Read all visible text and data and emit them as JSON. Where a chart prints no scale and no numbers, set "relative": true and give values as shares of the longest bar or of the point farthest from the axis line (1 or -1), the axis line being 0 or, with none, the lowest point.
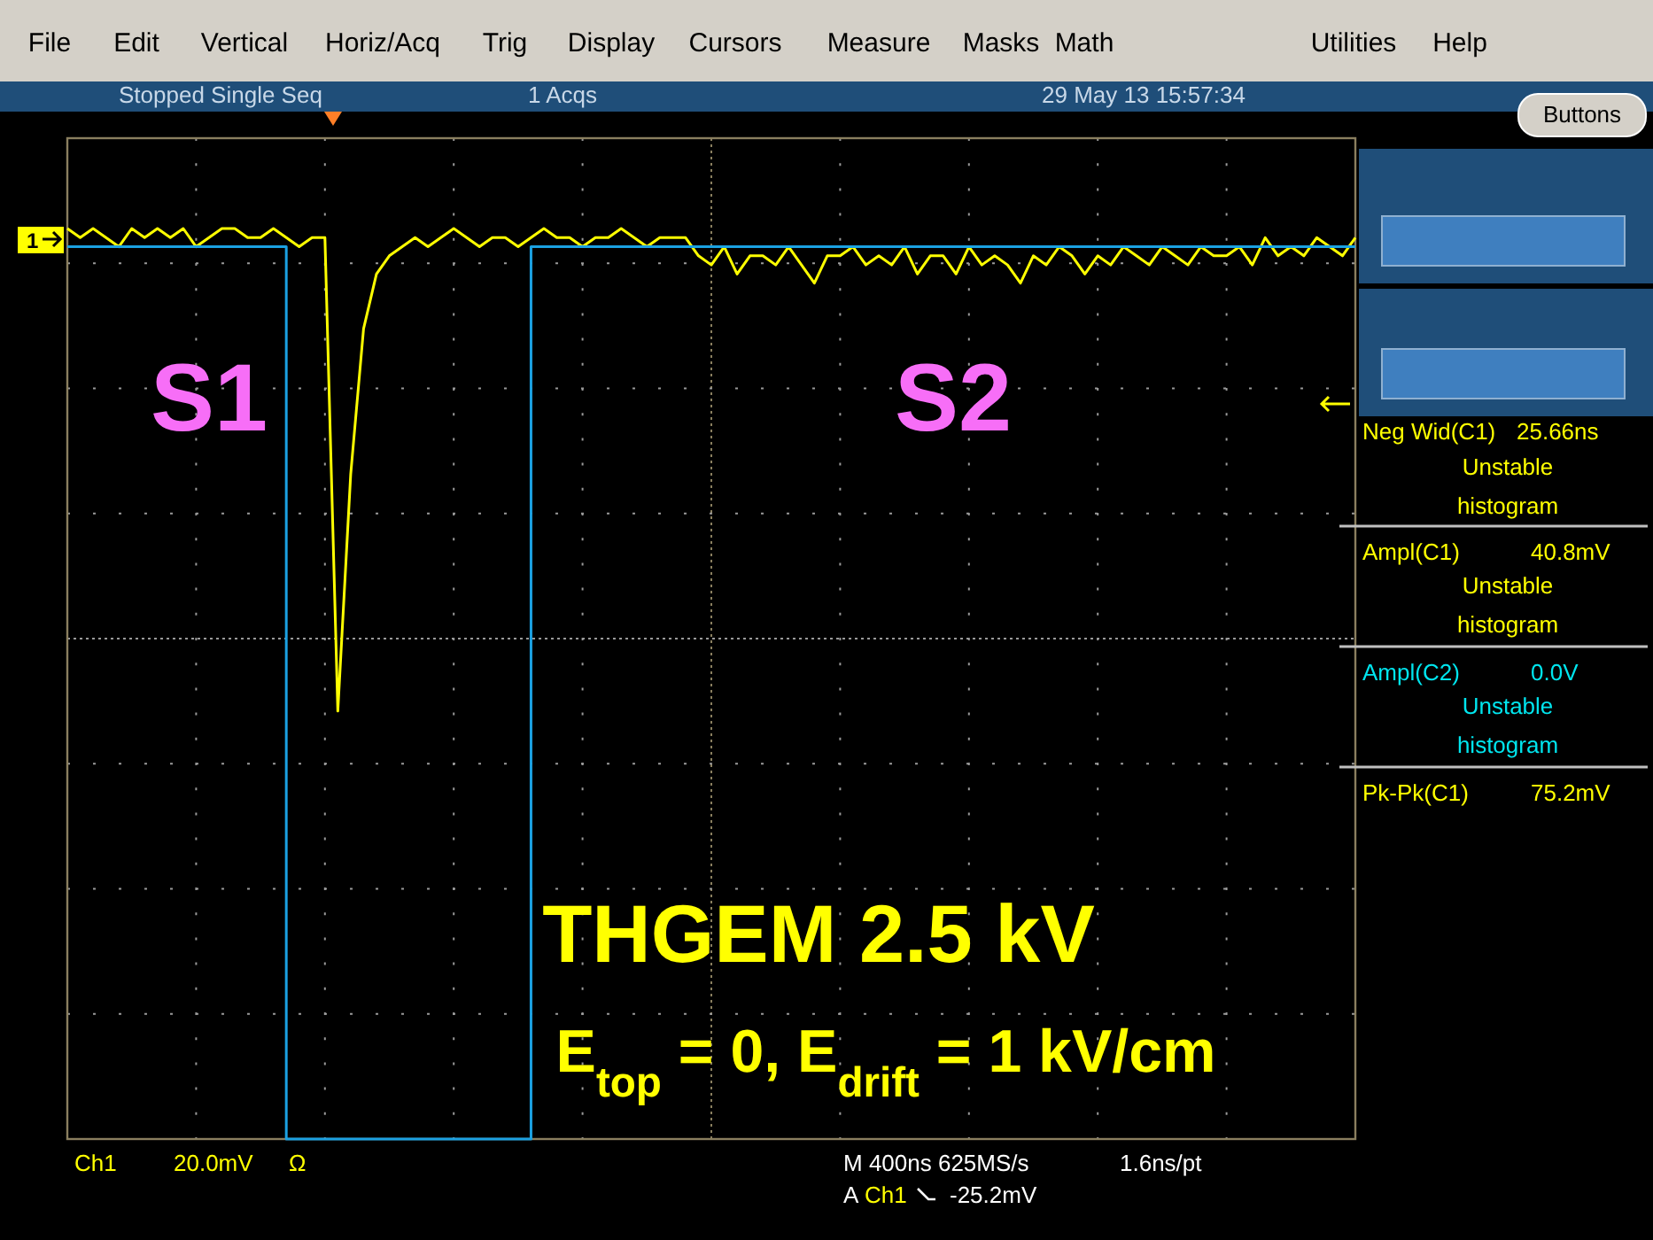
{
  "chart_data": {
    "type": "line",
    "relative": true,
    "grid": true,
    "marker": "none",
    "line_style": "solid",
    "title": "THGEM 2.5 kV",
    "subtitle": "E$_{top}$ = 0, E$_{drift}$ = 1 kV/cm",
    "categories": [
      null,
      null,
      null,
      null,
      null,
      null,
      null,
      null,
      null,
      null,
      null,
      null,
      null,
      null,
      null,
      null,
      null,
      null,
      null,
      null,
      null,
      null,
      null,
      null,
      null,
      null,
      null,
      null,
      null,
      null,
      null,
      null,
      null,
      null,
      null,
      null,
      null,
      null,
      null,
      null,
      null,
      null,
      null,
      null,
      null,
      null,
      null,
      null,
      null,
      null,
      null,
      null,
      null,
      null,
      null,
      null,
      null,
      null,
      null,
      null,
      null,
      null,
      null,
      null,
      null,
      null,
      null,
      null,
      null,
      null,
      null,
      null,
      null,
      null,
      null,
      null,
      null,
      null,
      null,
      null,
      null,
      null,
      null,
      null,
      null,
      null,
      null,
      null,
      null,
      null,
      null,
      null,
      null,
      null,
      null,
      null,
      null,
      null,
      null,
      null,
      null
    ],
    "series": [
      {
        "color": "#ffff00",
        "values": [
          1,
          0.99,
          1,
          0.99,
          0.98,
          1,
          0.99,
          1,
          0.99,
          1,
          0.98,
          0.99,
          1,
          1,
          0.99,
          0.99,
          1,
          0.99,
          0.98,
          0.99,
          0.99,
          0.47,
          0.73,
          0.89,
          0.95,
          0.97,
          0.98,
          0.99,
          0.98,
          0.99,
          1,
          0.99,
          0.98,
          0.99,
          0.99,
          0.98,
          0.99,
          1,
          0.99,
          0.99,
          0.98,
          0.99,
          0.99,
          1,
          0.99,
          0.98,
          0.99,
          0.99,
          0.99,
          0.97,
          0.96,
          0.98,
          0.95,
          0.97,
          0.97,
          0.96,
          0.98,
          0.96,
          0.94,
          0.97,
          0.97,
          0.98,
          0.96,
          0.97,
          0.96,
          0.98,
          0.95,
          0.97,
          0.97,
          0.95,
          0.98,
          0.96,
          0.97,
          0.96,
          0.94,
          0.97,
          0.96,
          0.98,
          0.97,
          0.95,
          0.97,
          0.96,
          0.98,
          0.97,
          0.96,
          0.98,
          0.97,
          0.96,
          0.98,
          0.97,
          0.97,
          0.98,
          0.96,
          0.99,
          0.97,
          0.98,
          0.97,
          0.99,
          0.98,
          0.97,
          0.99
        ]
      },
      {
        "type": "step",
        "color": "#1ba1e2",
        "values": [
          0.98,
          0.98,
          0.98,
          0.98,
          0.98,
          0.98,
          0.98,
          0.98,
          0.98,
          0.98,
          0.98,
          0.98,
          0.98,
          0.98,
          0.98,
          0.98,
          0.98,
          0,
          0,
          0,
          0,
          0,
          0,
          0,
          0,
          0,
          0,
          0,
          0,
          0,
          0,
          0,
          0,
          0,
          0,
          0,
          0.98,
          0.98,
          0.98,
          0.98,
          0.98,
          0.98,
          0.98,
          0.98,
          0.98,
          0.98,
          0.98,
          0.98,
          0.98,
          0.98,
          0.98,
          0.98,
          0.98,
          0.98,
          0.98,
          0.98,
          0.98,
          0.98,
          0.98,
          0.98,
          0.98,
          0.98,
          0.98,
          0.98,
          0.98,
          0.98,
          0.98,
          0.98,
          0.98,
          0.98,
          0.98,
          0.98,
          0.98,
          0.98,
          0.98,
          0.98,
          0.98,
          0.98,
          0.98,
          0.98,
          0.98,
          0.98,
          0.98,
          0.98,
          0.98,
          0.98,
          0.98,
          0.98,
          0.98,
          0.98,
          0.98,
          0.98,
          0.98,
          0.98,
          0.98,
          0.98,
          0.98,
          0.98,
          0.98,
          0.98,
          0.98
        ]
      }
    ],
    "annotations": [
      "S1",
      "S2",
      "File",
      "Edit",
      "Vertical",
      "Horiz/Acq",
      "Trig",
      "Display",
      "Cursors",
      "Measure",
      "Masks",
      "Math",
      "Utilities",
      "Help",
      "Stopped  Single Seq",
      "1 Acqs",
      "29 May 13 15:57:34",
      "Buttons",
      "Neg Wid(C1)",
      "25.66ns",
      "Unstable",
      "histogram",
      "Ampl(C1)",
      "40.8mV",
      "Unstable",
      "histogram",
      "Ampl(C2)",
      "0.0V",
      "Unstable",
      "histogram",
      "Pk-Pk(C1)",
      "75.2mV",
      "Ch1",
      "20.0mV",
      "Ω",
      "M 400ns 625MS/s",
      "1.6ns/pt",
      "A",
      "Ch1",
      "-25.2mV",
      "1"
    ]
  }
}
